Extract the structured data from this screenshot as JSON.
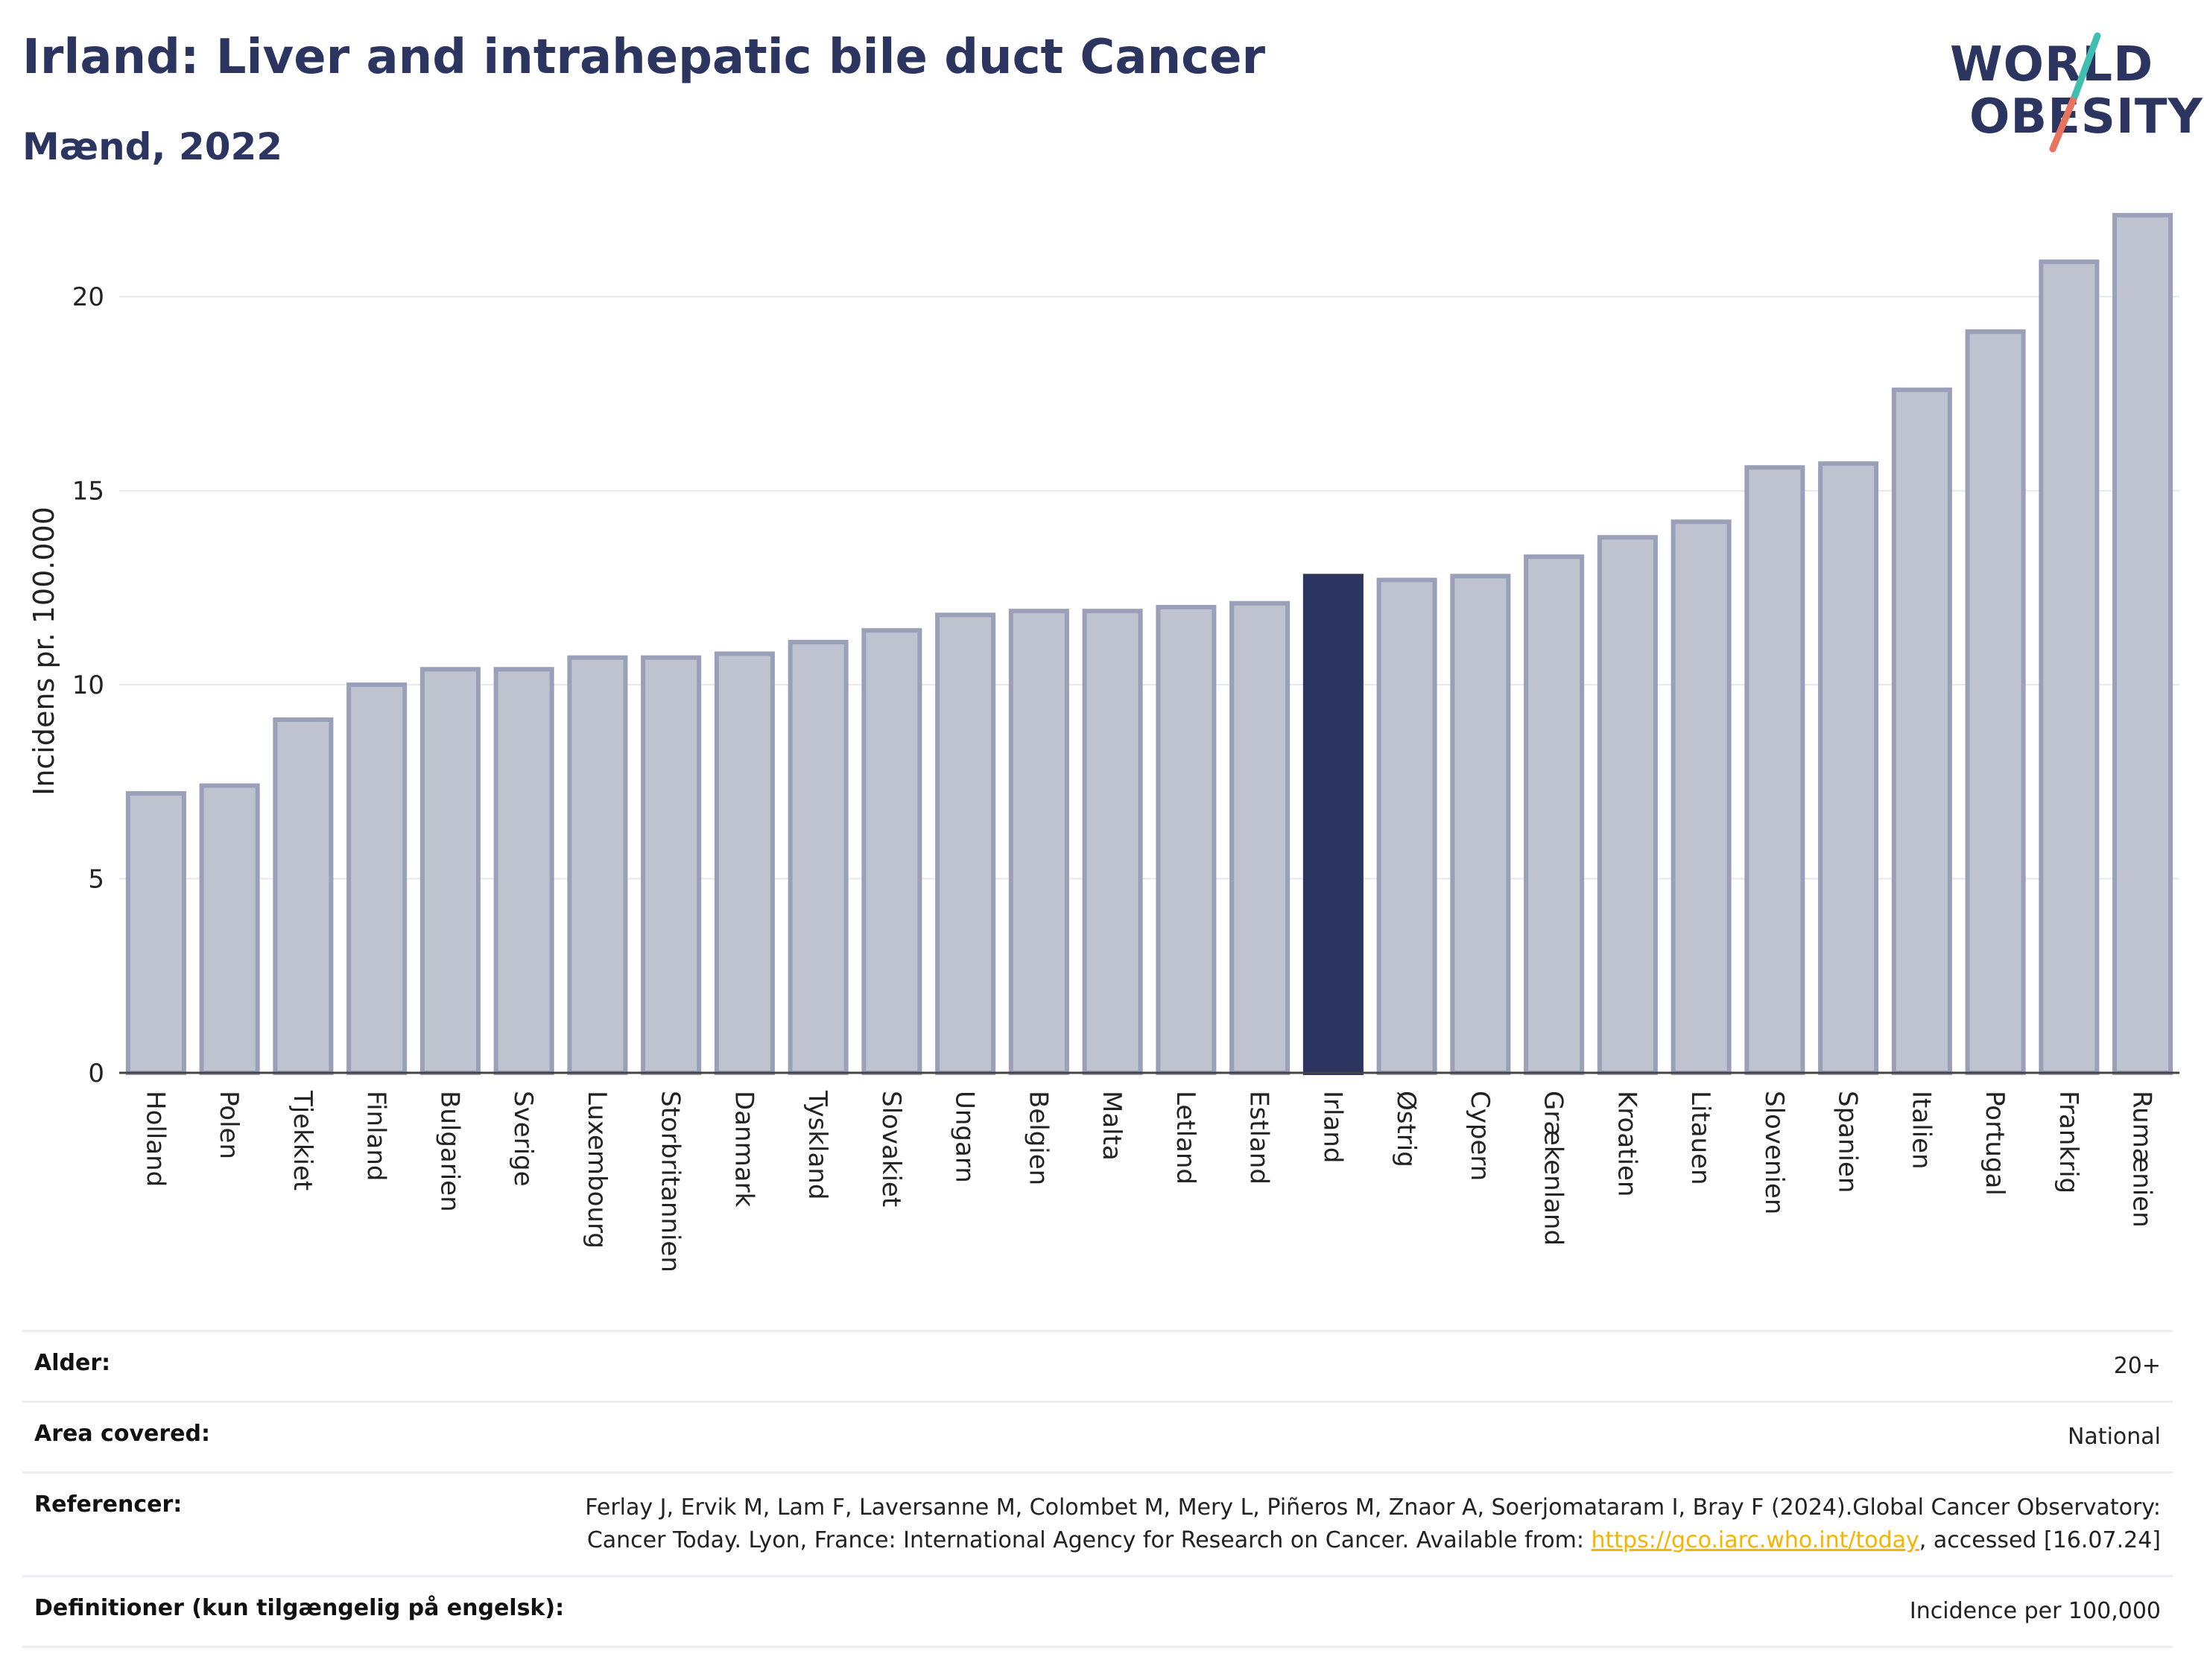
{
  "header": {
    "title": "Irland: Liver and intrahepatic bile duct Cancer",
    "subtitle": "Mænd, 2022"
  },
  "logo": {
    "line1": "WORLD",
    "line2": "OBESITY"
  },
  "colors": {
    "highlight": "#2b3560",
    "bar": "#bfc2cf",
    "bar_border": "#9aa0b8",
    "title": "#2b3560",
    "link": "#f4b400"
  },
  "chart_data": {
    "type": "bar",
    "ylabel": "Incidens pr. 100.000",
    "ylim": [
      0,
      22.5
    ],
    "yticks": [
      0,
      5,
      10,
      15,
      20
    ],
    "grid": true,
    "highlight": "Irland",
    "categories": [
      "Holland",
      "Polen",
      "Tjekkiet",
      "Finland",
      "Bulgarien",
      "Sverige",
      "Luxembourg",
      "Storbritannien",
      "Danmark",
      "Tyskland",
      "Slovakiet",
      "Ungarn",
      "Belgien",
      "Malta",
      "Letland",
      "Estland",
      "Irland",
      "Østrig",
      "Cypern",
      "Grækenland",
      "Kroatien",
      "Litauen",
      "Slovenien",
      "Spanien",
      "Italien",
      "Portugal",
      "Frankrig",
      "Rumænien"
    ],
    "values": [
      7.2,
      7.4,
      9.1,
      10.0,
      10.4,
      10.4,
      10.7,
      10.7,
      10.8,
      11.1,
      11.4,
      11.8,
      11.9,
      11.9,
      12.0,
      12.1,
      12.8,
      12.7,
      12.8,
      13.3,
      13.8,
      14.2,
      15.6,
      15.7,
      17.6,
      19.1,
      20.9,
      22.1
    ]
  },
  "meta": [
    {
      "label": "Alder:",
      "value": "20+"
    },
    {
      "label": "Area covered:",
      "value": "National"
    },
    {
      "label": "Referencer:",
      "value_pre": "Ferlay J, Ervik M, Lam F, Laversanne M, Colombet M, Mery L, Piñeros M, Znaor A, Soerjomataram I, Bray F (2024).Global Cancer Observatory: Cancer Today. Lyon, France: International Agency for Research on Cancer. Available from: ",
      "link": "https://gco.iarc.who.int/today",
      "value_post": ", accessed [16.07.24]"
    },
    {
      "label": "Definitioner (kun tilgængelig på engelsk):",
      "value": "Incidence per 100,000"
    }
  ]
}
